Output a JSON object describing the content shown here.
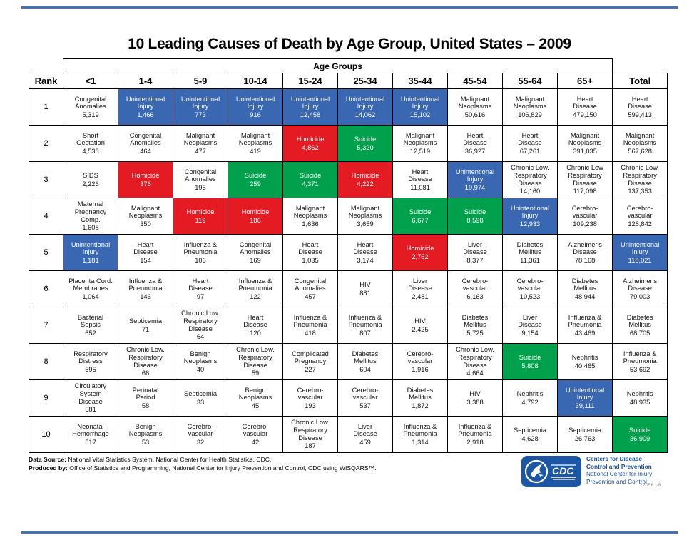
{
  "page": {
    "title": "10 Leading Causes of Death by Age Group, United States – 2009",
    "accent_rule_color": "#4472b8"
  },
  "table": {
    "age_groups_label": "Age Groups",
    "rank_header": "Rank",
    "total_header": "Total",
    "age_columns": [
      "<1",
      "1-4",
      "5-9",
      "10-14",
      "15-24",
      "25-34",
      "35-44",
      "45-54",
      "55-64",
      "65+"
    ],
    "colors": {
      "white": "#ffffff",
      "blue": "#3a67b1",
      "red": "#e51b24",
      "green": "#00a04d"
    },
    "rows": [
      {
        "rank": "1",
        "cells": [
          {
            "cause": "Congenital\nAnomalies",
            "value": "5,319",
            "color": "white"
          },
          {
            "cause": "Unintentional\nInjury",
            "value": "1,466",
            "color": "blue"
          },
          {
            "cause": "Unintentional\nInjury",
            "value": "773",
            "color": "blue"
          },
          {
            "cause": "Unintentional\nInjury",
            "value": "916",
            "color": "blue"
          },
          {
            "cause": "Unintentional\nInjury",
            "value": "12,458",
            "color": "blue"
          },
          {
            "cause": "Unintentional\nInjury",
            "value": "14,062",
            "color": "blue"
          },
          {
            "cause": "Unintentional\nInjury",
            "value": "15,102",
            "color": "blue"
          },
          {
            "cause": "Malignant\nNeoplasms",
            "value": "50,616",
            "color": "white"
          },
          {
            "cause": "Malignant\nNeoplasms",
            "value": "106,829",
            "color": "white"
          },
          {
            "cause": "Heart\nDisease",
            "value": "479,150",
            "color": "white"
          },
          {
            "cause": "Heart\nDisease",
            "value": "599,413",
            "color": "white"
          }
        ]
      },
      {
        "rank": "2",
        "cells": [
          {
            "cause": "Short\nGestation",
            "value": "4,538",
            "color": "white"
          },
          {
            "cause": "Congenital\nAnomalies",
            "value": "464",
            "color": "white"
          },
          {
            "cause": "Malignant\nNeoplasms",
            "value": "477",
            "color": "white"
          },
          {
            "cause": "Malignant\nNeoplasms",
            "value": "419",
            "color": "white"
          },
          {
            "cause": "Homicide",
            "value": "4,862",
            "color": "red"
          },
          {
            "cause": "Suicide",
            "value": "5,320",
            "color": "green"
          },
          {
            "cause": "Malignant\nNeoplasms",
            "value": "12,519",
            "color": "white"
          },
          {
            "cause": "Heart\nDisease",
            "value": "36,927",
            "color": "white"
          },
          {
            "cause": "Heart\nDisease",
            "value": "67,261",
            "color": "white"
          },
          {
            "cause": "Malignant\nNeoplasms",
            "value": "391,035",
            "color": "white"
          },
          {
            "cause": "Malignant\nNeoplasms",
            "value": "567,628",
            "color": "white"
          }
        ]
      },
      {
        "rank": "3",
        "cells": [
          {
            "cause": "SIDS",
            "value": "2,226",
            "color": "white"
          },
          {
            "cause": "Homicide",
            "value": "376",
            "color": "red"
          },
          {
            "cause": "Congenital\nAnomalies",
            "value": "195",
            "color": "white"
          },
          {
            "cause": "Suicide",
            "value": "259",
            "color": "green"
          },
          {
            "cause": "Suicide",
            "value": "4,371",
            "color": "green"
          },
          {
            "cause": "Homicide",
            "value": "4,222",
            "color": "red"
          },
          {
            "cause": "Heart\nDisease",
            "value": "11,081",
            "color": "white"
          },
          {
            "cause": "Unintentional\nInjury",
            "value": "19,974",
            "color": "blue"
          },
          {
            "cause": "Chronic Low.\nRespiratory\nDisease",
            "value": "14,160",
            "color": "white"
          },
          {
            "cause": "Chronic Low\nRespiratory\nDisease",
            "value": "117,098",
            "color": "white"
          },
          {
            "cause": "Chronic Low.\nRespiratory\nDisease",
            "value": "137,353",
            "color": "white"
          }
        ]
      },
      {
        "rank": "4",
        "cells": [
          {
            "cause": "Maternal\nPregnancy\nComp.",
            "value": "1,608",
            "color": "white"
          },
          {
            "cause": "Malignant\nNeoplasms",
            "value": "350",
            "color": "white"
          },
          {
            "cause": "Homicide",
            "value": "119",
            "color": "red"
          },
          {
            "cause": "Homicide",
            "value": "186",
            "color": "red"
          },
          {
            "cause": "Malignant\nNeoplasms",
            "value": "1,636",
            "color": "white"
          },
          {
            "cause": "Malignant\nNeoplasms",
            "value": "3,659",
            "color": "white"
          },
          {
            "cause": "Suicide",
            "value": "6,677",
            "color": "green"
          },
          {
            "cause": "Suicide",
            "value": "8,598",
            "color": "green"
          },
          {
            "cause": "Unintentional\nInjury",
            "value": "12,933",
            "color": "blue"
          },
          {
            "cause": "Cerebro-\nvascular",
            "value": "109,238",
            "color": "white"
          },
          {
            "cause": "Cerebro-\nvascular",
            "value": "128,842",
            "color": "white"
          }
        ]
      },
      {
        "rank": "5",
        "cells": [
          {
            "cause": "Unintentional\nInjury",
            "value": "1,181",
            "color": "blue"
          },
          {
            "cause": "Heart\nDisease",
            "value": "154",
            "color": "white"
          },
          {
            "cause": "Influenza &\nPneumonia",
            "value": "106",
            "color": "white"
          },
          {
            "cause": "Congenital\nAnomalies",
            "value": "169",
            "color": "white"
          },
          {
            "cause": "Heart\nDisease",
            "value": "1,035",
            "color": "white"
          },
          {
            "cause": "Heart\nDisease",
            "value": "3,174",
            "color": "white"
          },
          {
            "cause": "Homicide",
            "value": "2,762",
            "color": "red"
          },
          {
            "cause": "Liver\nDisease",
            "value": "8,377",
            "color": "white"
          },
          {
            "cause": "Diabetes\nMellitus",
            "value": "11,361",
            "color": "white"
          },
          {
            "cause": "Alzheimer's\nDisease",
            "value": "78,168",
            "color": "white"
          },
          {
            "cause": "Unintentional\nInjury",
            "value": "118,021",
            "color": "blue"
          }
        ]
      },
      {
        "rank": "6",
        "cells": [
          {
            "cause": "Placenta Cord.\nMembranes",
            "value": "1,064",
            "color": "white"
          },
          {
            "cause": "Influenza &\nPneumonia",
            "value": "146",
            "color": "white"
          },
          {
            "cause": "Heart\nDisease",
            "value": "97",
            "color": "white"
          },
          {
            "cause": "Influenza &\nPneumonia",
            "value": "122",
            "color": "white"
          },
          {
            "cause": "Congenital\nAnomalies",
            "value": "457",
            "color": "white"
          },
          {
            "cause": "HIV",
            "value": "881",
            "color": "white"
          },
          {
            "cause": "Liver\nDisease",
            "value": "2,481",
            "color": "white"
          },
          {
            "cause": "Cerebro-\nvascular",
            "value": "6,163",
            "color": "white"
          },
          {
            "cause": "Cerebro-\nvascular",
            "value": "10,523",
            "color": "white"
          },
          {
            "cause": "Diabetes\nMellitus",
            "value": "48,944",
            "color": "white"
          },
          {
            "cause": "Alzheimer's\nDisease",
            "value": "79,003",
            "color": "white"
          }
        ]
      },
      {
        "rank": "7",
        "cells": [
          {
            "cause": "Bacterial\nSepsis",
            "value": "652",
            "color": "white"
          },
          {
            "cause": "Septicemia",
            "value": "71",
            "color": "white"
          },
          {
            "cause": "Chronic Low.\nRespiratory\nDisease",
            "value": "64",
            "color": "white"
          },
          {
            "cause": "Heart\nDisease",
            "value": "120",
            "color": "white"
          },
          {
            "cause": "Influenza &\nPneumonia",
            "value": "418",
            "color": "white"
          },
          {
            "cause": "Influenza &\nPneumonia",
            "value": "807",
            "color": "white"
          },
          {
            "cause": "HIV",
            "value": "2,425",
            "color": "white"
          },
          {
            "cause": "Diabetes\nMellitus",
            "value": "5,725",
            "color": "white"
          },
          {
            "cause": "Liver\nDisease",
            "value": "9,154",
            "color": "white"
          },
          {
            "cause": "Influenza &\nPneumonia",
            "value": "43,469",
            "color": "white"
          },
          {
            "cause": "Diabetes\nMellitus",
            "value": "68,705",
            "color": "white"
          }
        ]
      },
      {
        "rank": "8",
        "cells": [
          {
            "cause": "Respiratory\nDistress",
            "value": "595",
            "color": "white"
          },
          {
            "cause": "Chronic Low.\nRespiratory\nDisease",
            "value": "66",
            "color": "white"
          },
          {
            "cause": "Benign\nNeoplasms",
            "value": "40",
            "color": "white"
          },
          {
            "cause": "Chronic Low.\nRespiratory\nDisease",
            "value": "59",
            "color": "white"
          },
          {
            "cause": "Complicated\nPregnancy",
            "value": "227",
            "color": "white"
          },
          {
            "cause": "Diabetes\nMellitus",
            "value": "604",
            "color": "white"
          },
          {
            "cause": "Cerebro-\nvascular",
            "value": "1,916",
            "color": "white"
          },
          {
            "cause": "Chronic Low.\nRespiratory\nDisease",
            "value": "4,664",
            "color": "white"
          },
          {
            "cause": "Suicide",
            "value": "5,808",
            "color": "green"
          },
          {
            "cause": "Nephritis",
            "value": "40,465",
            "color": "white"
          },
          {
            "cause": "Influenza &\nPneumonia",
            "value": "53,692",
            "color": "white"
          }
        ]
      },
      {
        "rank": "9",
        "cells": [
          {
            "cause": "Circulatory\nSystem\nDisease",
            "value": "581",
            "color": "white"
          },
          {
            "cause": "Perinatal\nPeriod",
            "value": "58",
            "color": "white"
          },
          {
            "cause": "Septicemia",
            "value": "33",
            "color": "white"
          },
          {
            "cause": "Benign\nNeoplasms",
            "value": "45",
            "color": "white"
          },
          {
            "cause": "Cerebro-\nvascular",
            "value": "193",
            "color": "white"
          },
          {
            "cause": "Cerebro-\nvascular",
            "value": "537",
            "color": "white"
          },
          {
            "cause": "Diabetes\nMellitus",
            "value": "1,872",
            "color": "white"
          },
          {
            "cause": "HIV",
            "value": "3,388",
            "color": "white"
          },
          {
            "cause": "Nephritis",
            "value": "4,792",
            "color": "white"
          },
          {
            "cause": "Unintentional\nInjury",
            "value": "39,111",
            "color": "blue"
          },
          {
            "cause": "Nephritis",
            "value": "48,935",
            "color": "white"
          }
        ]
      },
      {
        "rank": "10",
        "cells": [
          {
            "cause": "Neonatal\nHemorrhage",
            "value": "517",
            "color": "white"
          },
          {
            "cause": "Benign\nNeoplasms",
            "value": "53",
            "color": "white"
          },
          {
            "cause": "Cerebro-\nvascular",
            "value": "32",
            "color": "white"
          },
          {
            "cause": "Cerebro-\nvascular",
            "value": "42",
            "color": "white"
          },
          {
            "cause": "Chronic Low.\nRespiratory\nDisease",
            "value": "187",
            "color": "white"
          },
          {
            "cause": "Liver\nDisease",
            "value": "459",
            "color": "white"
          },
          {
            "cause": "Influenza &\nPneumonia",
            "value": "1,314",
            "color": "white"
          },
          {
            "cause": "Influenza &\nPneumonia",
            "value": "2,918",
            "color": "white"
          },
          {
            "cause": "Septicemia",
            "value": "4,628",
            "color": "white"
          },
          {
            "cause": "Septicemia",
            "value": "26,763",
            "color": "white"
          },
          {
            "cause": "Suicide",
            "value": "36,909",
            "color": "green"
          }
        ]
      }
    ]
  },
  "footer": {
    "data_source_label": "Data Source:",
    "data_source_text": " National Vital Statistics System, National Center for Health Statistics, CDC.",
    "produced_by_label": "Produced by:",
    "produced_by_text": " Office of Statistics and Programming, National Center for Injury Prevention and Control, CDC using WISQARS™.",
    "document_code": "220561-B"
  },
  "logo": {
    "cdc_text": "CDC",
    "line1": "Centers for Disease",
    "line2": "Control and Prevention",
    "line3": "National Center for Injury",
    "line4": "Prevention and Control",
    "brand_blue": "#1c57a5"
  }
}
